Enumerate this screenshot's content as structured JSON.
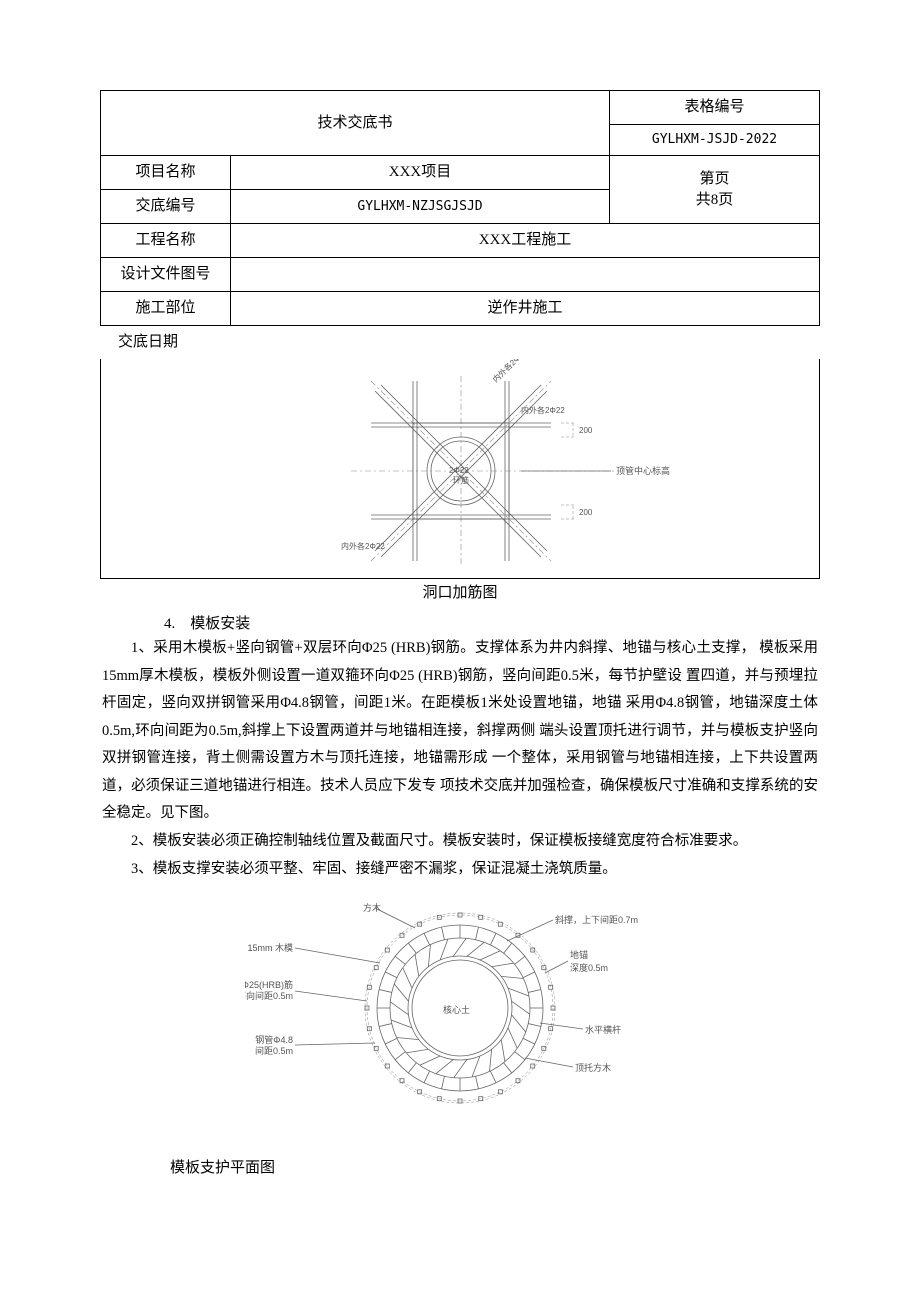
{
  "header": {
    "title": "技术交底书",
    "form_num_label": "表格编号",
    "form_num_value": "GYLHXM-JSJD-2022",
    "rows": [
      {
        "label": "项目名称",
        "value": "XXX项目"
      },
      {
        "label": "交底编号",
        "value": "GYLHXM-NZJSGJSJD"
      },
      {
        "label": "工程名称",
        "value": "XXX工程施工"
      },
      {
        "label": "设计文件图号",
        "value": ""
      },
      {
        "label": "施工部位",
        "value": "逆作井施工"
      }
    ],
    "page_line1": "第页",
    "page_line2": "共8页",
    "date_label": "交底日期"
  },
  "fig1": {
    "caption": "洞口加筋图",
    "labels": {
      "top_diag": "内外各2Φ22",
      "right_top": "内外各2Φ22",
      "center": "2Φ22",
      "center_sub": "环筋",
      "bottom_left": "内外各2Φ22",
      "right_mid": "顶管中心标高",
      "dim_r": "200",
      "dim_b": "200"
    },
    "colors": {
      "line": "#666666",
      "dash": "#888888",
      "text": "#555555"
    }
  },
  "section": {
    "num": "4.",
    "title": "模板安装",
    "p1": "1、采用木模板+竖向钢管+双层环向Φ25 (HRB)钢筋。支撑体系为井内斜撑、地锚与核心土支撑，  模板采用15mm厚木模板，模板外侧设置一道双箍环向Φ25 (HRB)钢筋，竖向间距0.5米，每节护壁设  置四道，并与预埋拉杆固定，竖向双拼钢管采用Φ4.8钢管，间距1米。在距模板1米处设置地锚，地锚  采用Φ4.8钢管，地锚深度土体0.5m,环向间距为0.5m,斜撑上下设置两道并与地锚相连接，斜撑两侧  端头设置顶托进行调节，并与模板支护竖向双拼钢管连接，背土侧需设置方木与顶托连接，地锚需形成  一个整体，采用钢管与地锚相连接，上下共设置两道，必须保证三道地锚进行相连。技术人员应下发专  项技术交底并加强检查，确保模板尺寸准确和支撑系统的安全稳定。见下图。",
    "p2": "2、模板安装必须正确控制轴线位置及截面尺寸。模板安装时，保证模板接缝宽度符合标准要求。",
    "p3": "3、模板支撑安装必须平整、牢固、接缝严密不漏浆，保证混凝土浇筑质量。"
  },
  "fig2": {
    "caption": "模板支护平面图",
    "labels": {
      "top_left": "方木",
      "l1": "15mm 木模",
      "l2_a": "Φ25(HRB)筋",
      "l2_b": "环向间距0.5m",
      "l3_a": "钢管Φ4.8",
      "l3_b": "间距0.5m",
      "center": "核心土",
      "r1": "斜撑，上下间距0.7m",
      "r2_a": "地锚",
      "r2_b": "深度0.5m",
      "r3": "水平横杆",
      "r4": "顶托方木"
    },
    "geometry": {
      "outer_r": 95,
      "ring2_r": 83,
      "ring3_r": 70,
      "inner_r": 52,
      "tick_count": 28,
      "strut_count": 24
    },
    "colors": {
      "line": "#666666",
      "dash": "#999999",
      "text": "#555555",
      "fill": "#ffffff"
    }
  }
}
